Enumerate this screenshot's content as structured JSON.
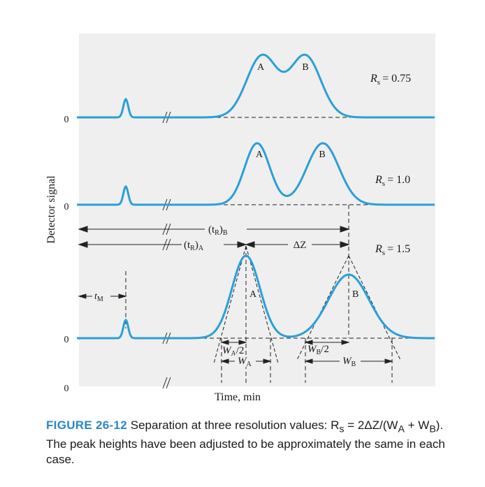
{
  "chart_data": {
    "type": "line",
    "ylabel": "Detector signal",
    "xlabel": "Time, min",
    "traces": [
      {
        "name": "Rs = 0.75",
        "resolution_label": "R",
        "resolution_sub": "s",
        "resolution_value": "= 0.75",
        "zero_label": "0",
        "peak_labels": [
          "A",
          "B"
        ]
      },
      {
        "name": "Rs = 1.0",
        "resolution_label": "R",
        "resolution_sub": "s",
        "resolution_value": "= 1.0",
        "zero_label": "0",
        "peak_labels": [
          "A",
          "B"
        ]
      },
      {
        "name": "Rs = 1.5",
        "resolution_label": "R",
        "resolution_sub": "s",
        "resolution_value": "= 1.5",
        "zero_label": "0",
        "peak_labels": [
          "A",
          "B"
        ]
      }
    ],
    "axis_zero_label": "0",
    "annotations": {
      "tRB_main": "(t",
      "tRB_sub": "R",
      "tRB_close": ")",
      "tRB_peak": "B",
      "tRA_main": "(t",
      "tRA_sub": "R",
      "tRA_close": ")",
      "tRA_peak": "A",
      "delta_z": "ΔZ",
      "tM_main": "t",
      "tM_sub": "M",
      "wa_half_main": "W",
      "wa_half_sub": "A",
      "wa_half_tail": "/2",
      "wa_main": "W",
      "wa_sub": "A",
      "wb_half_main": "W",
      "wb_half_sub": "B",
      "wb_half_tail": "/2",
      "wb_main": "W",
      "wb_sub": "B"
    },
    "line_color": "#2a9fd8",
    "grid": false
  },
  "caption": {
    "label": "FIGURE 26-12",
    "text": "Separation at three resolution values: R",
    "text_sub": "s",
    "text_eq": " = 2ΔZ/(W",
    "text_sub_a": "A",
    "text_plus": " + W",
    "text_sub_b": "B",
    "text_rest": "). The peak heights have been adjusted to be approximately the same in each case."
  }
}
